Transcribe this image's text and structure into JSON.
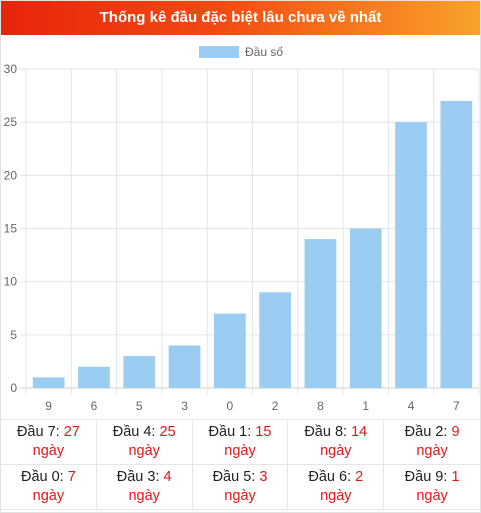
{
  "title": "Thống kê đầu đặc biệt lâu chưa về nhất",
  "chart_data": {
    "type": "bar",
    "legend": {
      "label": "Đầu số",
      "placement": "top-center"
    },
    "categories": [
      "9",
      "6",
      "5",
      "3",
      "0",
      "2",
      "8",
      "1",
      "4",
      "7"
    ],
    "series": [
      {
        "name": "Đầu số",
        "values": [
          1,
          2,
          3,
          4,
          7,
          9,
          14,
          15,
          25,
          27
        ]
      }
    ],
    "ylim": [
      0,
      30
    ],
    "yticks": [
      "0",
      "5",
      "10",
      "15",
      "20",
      "25",
      "30"
    ],
    "grid": true,
    "bar_color": "#9bcdf2"
  },
  "stats": [
    {
      "label": "Đầu 7:",
      "value": "27",
      "unit": "ngày"
    },
    {
      "label": "Đầu 4:",
      "value": "25",
      "unit": "ngày"
    },
    {
      "label": "Đầu 1:",
      "value": "15",
      "unit": "ngày"
    },
    {
      "label": "Đầu 8:",
      "value": "14",
      "unit": "ngày"
    },
    {
      "label": "Đầu 2:",
      "value": "9",
      "unit": "ngày"
    },
    {
      "label": "Đầu 0:",
      "value": "7",
      "unit": "ngày"
    },
    {
      "label": "Đầu 3:",
      "value": "4",
      "unit": "ngày"
    },
    {
      "label": "Đầu 5:",
      "value": "3",
      "unit": "ngày"
    },
    {
      "label": "Đầu 6:",
      "value": "2",
      "unit": "ngày"
    },
    {
      "label": "Đầu 9:",
      "value": "1",
      "unit": "ngày"
    }
  ]
}
